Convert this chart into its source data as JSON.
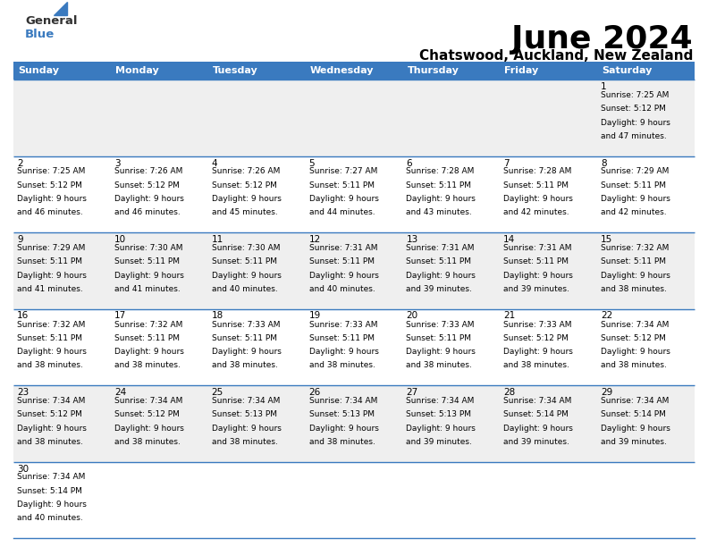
{
  "title": "June 2024",
  "subtitle": "Chatswood, Auckland, New Zealand",
  "header_color": "#3a7abf",
  "header_text_color": "#ffffff",
  "days_of_week": [
    "Sunday",
    "Monday",
    "Tuesday",
    "Wednesday",
    "Thursday",
    "Friday",
    "Saturday"
  ],
  "bg_color": "#ffffff",
  "cell_bg_even": "#efefef",
  "cell_bg_odd": "#ffffff",
  "border_color": "#3a7abf",
  "text_color": "#000000",
  "calendar": [
    [
      {
        "day": "",
        "sunrise": "",
        "sunset": "",
        "daylight": ""
      },
      {
        "day": "",
        "sunrise": "",
        "sunset": "",
        "daylight": ""
      },
      {
        "day": "",
        "sunrise": "",
        "sunset": "",
        "daylight": ""
      },
      {
        "day": "",
        "sunrise": "",
        "sunset": "",
        "daylight": ""
      },
      {
        "day": "",
        "sunrise": "",
        "sunset": "",
        "daylight": ""
      },
      {
        "day": "",
        "sunrise": "",
        "sunset": "",
        "daylight": ""
      },
      {
        "day": "1",
        "sunrise": "7:25 AM",
        "sunset": "5:12 PM",
        "daylight": "9 hours and 47 minutes."
      }
    ],
    [
      {
        "day": "2",
        "sunrise": "7:25 AM",
        "sunset": "5:12 PM",
        "daylight": "9 hours and 46 minutes."
      },
      {
        "day": "3",
        "sunrise": "7:26 AM",
        "sunset": "5:12 PM",
        "daylight": "9 hours and 46 minutes."
      },
      {
        "day": "4",
        "sunrise": "7:26 AM",
        "sunset": "5:12 PM",
        "daylight": "9 hours and 45 minutes."
      },
      {
        "day": "5",
        "sunrise": "7:27 AM",
        "sunset": "5:11 PM",
        "daylight": "9 hours and 44 minutes."
      },
      {
        "day": "6",
        "sunrise": "7:28 AM",
        "sunset": "5:11 PM",
        "daylight": "9 hours and 43 minutes."
      },
      {
        "day": "7",
        "sunrise": "7:28 AM",
        "sunset": "5:11 PM",
        "daylight": "9 hours and 42 minutes."
      },
      {
        "day": "8",
        "sunrise": "7:29 AM",
        "sunset": "5:11 PM",
        "daylight": "9 hours and 42 minutes."
      }
    ],
    [
      {
        "day": "9",
        "sunrise": "7:29 AM",
        "sunset": "5:11 PM",
        "daylight": "9 hours and 41 minutes."
      },
      {
        "day": "10",
        "sunrise": "7:30 AM",
        "sunset": "5:11 PM",
        "daylight": "9 hours and 41 minutes."
      },
      {
        "day": "11",
        "sunrise": "7:30 AM",
        "sunset": "5:11 PM",
        "daylight": "9 hours and 40 minutes."
      },
      {
        "day": "12",
        "sunrise": "7:31 AM",
        "sunset": "5:11 PM",
        "daylight": "9 hours and 40 minutes."
      },
      {
        "day": "13",
        "sunrise": "7:31 AM",
        "sunset": "5:11 PM",
        "daylight": "9 hours and 39 minutes."
      },
      {
        "day": "14",
        "sunrise": "7:31 AM",
        "sunset": "5:11 PM",
        "daylight": "9 hours and 39 minutes."
      },
      {
        "day": "15",
        "sunrise": "7:32 AM",
        "sunset": "5:11 PM",
        "daylight": "9 hours and 38 minutes."
      }
    ],
    [
      {
        "day": "16",
        "sunrise": "7:32 AM",
        "sunset": "5:11 PM",
        "daylight": "9 hours and 38 minutes."
      },
      {
        "day": "17",
        "sunrise": "7:32 AM",
        "sunset": "5:11 PM",
        "daylight": "9 hours and 38 minutes."
      },
      {
        "day": "18",
        "sunrise": "7:33 AM",
        "sunset": "5:11 PM",
        "daylight": "9 hours and 38 minutes."
      },
      {
        "day": "19",
        "sunrise": "7:33 AM",
        "sunset": "5:11 PM",
        "daylight": "9 hours and 38 minutes."
      },
      {
        "day": "20",
        "sunrise": "7:33 AM",
        "sunset": "5:11 PM",
        "daylight": "9 hours and 38 minutes."
      },
      {
        "day": "21",
        "sunrise": "7:33 AM",
        "sunset": "5:12 PM",
        "daylight": "9 hours and 38 minutes."
      },
      {
        "day": "22",
        "sunrise": "7:34 AM",
        "sunset": "5:12 PM",
        "daylight": "9 hours and 38 minutes."
      }
    ],
    [
      {
        "day": "23",
        "sunrise": "7:34 AM",
        "sunset": "5:12 PM",
        "daylight": "9 hours and 38 minutes."
      },
      {
        "day": "24",
        "sunrise": "7:34 AM",
        "sunset": "5:12 PM",
        "daylight": "9 hours and 38 minutes."
      },
      {
        "day": "25",
        "sunrise": "7:34 AM",
        "sunset": "5:13 PM",
        "daylight": "9 hours and 38 minutes."
      },
      {
        "day": "26",
        "sunrise": "7:34 AM",
        "sunset": "5:13 PM",
        "daylight": "9 hours and 38 minutes."
      },
      {
        "day": "27",
        "sunrise": "7:34 AM",
        "sunset": "5:13 PM",
        "daylight": "9 hours and 39 minutes."
      },
      {
        "day": "28",
        "sunrise": "7:34 AM",
        "sunset": "5:14 PM",
        "daylight": "9 hours and 39 minutes."
      },
      {
        "day": "29",
        "sunrise": "7:34 AM",
        "sunset": "5:14 PM",
        "daylight": "9 hours and 39 minutes."
      }
    ],
    [
      {
        "day": "30",
        "sunrise": "7:34 AM",
        "sunset": "5:14 PM",
        "daylight": "9 hours and 40 minutes."
      },
      {
        "day": "",
        "sunrise": "",
        "sunset": "",
        "daylight": ""
      },
      {
        "day": "",
        "sunrise": "",
        "sunset": "",
        "daylight": ""
      },
      {
        "day": "",
        "sunrise": "",
        "sunset": "",
        "daylight": ""
      },
      {
        "day": "",
        "sunrise": "",
        "sunset": "",
        "daylight": ""
      },
      {
        "day": "",
        "sunrise": "",
        "sunset": "",
        "daylight": ""
      },
      {
        "day": "",
        "sunrise": "",
        "sunset": "",
        "daylight": ""
      }
    ]
  ],
  "title_fontsize": 26,
  "subtitle_fontsize": 11,
  "dow_fontsize": 8,
  "day_num_fontsize": 7.5,
  "cell_fontsize": 6.5,
  "logo_general_color": "#333333",
  "logo_blue_color": "#3a7abf",
  "logo_triangle_color": "#3a7abf"
}
